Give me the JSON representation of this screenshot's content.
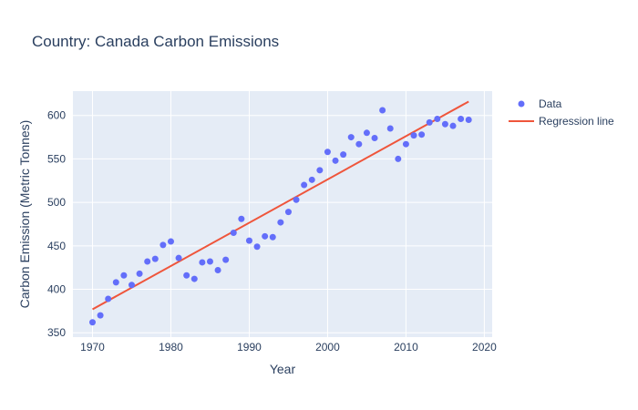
{
  "chart_data": {
    "type": "scatter",
    "title": "Country: Canada Carbon Emissions",
    "xlabel": "Year",
    "ylabel": "Carbon Emission (Metric Tonnes)",
    "xlim": [
      1967.5,
      2021
    ],
    "ylim": [
      345,
      628
    ],
    "xticks": [
      1970,
      1980,
      1990,
      2000,
      2010,
      2020
    ],
    "yticks": [
      350,
      400,
      450,
      500,
      550,
      600
    ],
    "grid": true,
    "legend_position": "top-right",
    "plot_background": "#e5ecf6",
    "series": [
      {
        "name": "Data",
        "mode": "markers",
        "color": "#636efa",
        "x": [
          1970,
          1971,
          1972,
          1973,
          1974,
          1975,
          1976,
          1977,
          1978,
          1979,
          1980,
          1981,
          1982,
          1983,
          1984,
          1985,
          1986,
          1987,
          1988,
          1989,
          1990,
          1991,
          1992,
          1993,
          1994,
          1995,
          1996,
          1997,
          1998,
          1999,
          2000,
          2001,
          2002,
          2003,
          2004,
          2005,
          2006,
          2007,
          2008,
          2009,
          2010,
          2011,
          2012,
          2013,
          2014,
          2015,
          2016,
          2017,
          2018
        ],
        "y": [
          362,
          370,
          389,
          408,
          416,
          405,
          418,
          432,
          435,
          451,
          455,
          436,
          416,
          412,
          431,
          432,
          422,
          434,
          465,
          481,
          456,
          449,
          461,
          460,
          477,
          489,
          503,
          520,
          526,
          537,
          558,
          548,
          555,
          575,
          567,
          580,
          574,
          606,
          585,
          550,
          567,
          577,
          578,
          592,
          596,
          590,
          588,
          596,
          595
        ]
      },
      {
        "name": "Regression line",
        "mode": "lines",
        "color": "#ef553b",
        "x": [
          1970,
          2018
        ],
        "y": [
          377,
          616
        ]
      }
    ]
  }
}
